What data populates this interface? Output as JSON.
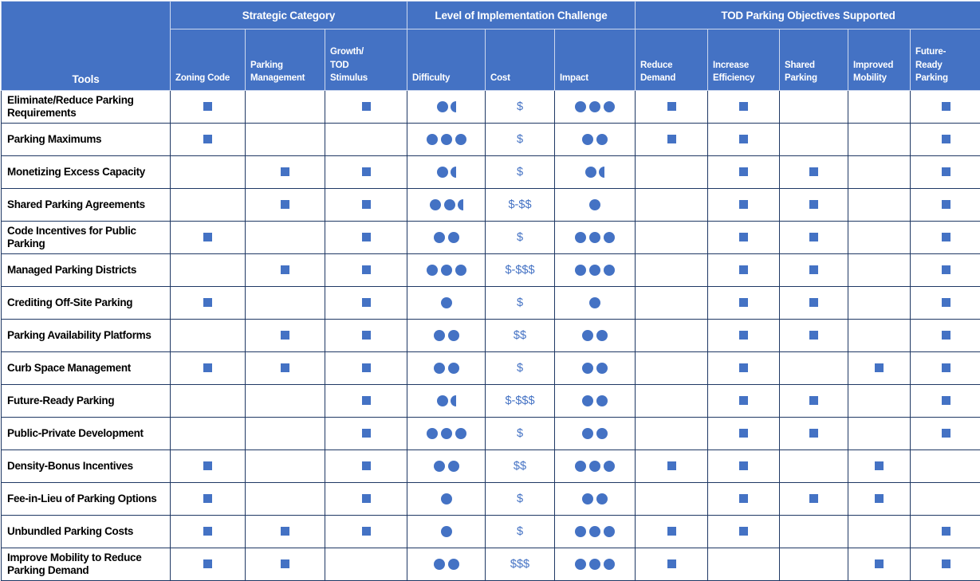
{
  "colors": {
    "header_bg": "#4472C4",
    "header_text": "#FFFFFF",
    "header_grid": "#CDD8EE",
    "body_grid": "#1F3864",
    "symbol_blue": "#4472C4",
    "tool_text": "#000000"
  },
  "icons": {
    "checked": "filled-square-icon",
    "rating_full": "filled-circle-icon",
    "rating_half": "left-half-filled-circle-icon"
  },
  "table": {
    "tools_header": "Tools",
    "groups": [
      {
        "label": "Strategic Category",
        "span": 3
      },
      {
        "label": "Level of Implementation Challenge",
        "span": 3
      },
      {
        "label": "TOD Parking Objectives Supported",
        "span": 5
      }
    ],
    "columns": [
      "Zoning Code",
      "Parking\nManagement",
      "Growth/\nTOD\nStimulus",
      "Difficulty",
      "Cost",
      "Impact",
      "Reduce\nDemand",
      "Increase\nEfficiency",
      "Shared\nParking",
      "Improved\nMobility",
      "Future-\nReady\nParking"
    ],
    "rows": [
      {
        "tool": "Eliminate/Reduce Parking Requirements",
        "cats": [
          1,
          0,
          1
        ],
        "difficulty": 1.5,
        "cost": "$",
        "impact": 3,
        "objectives": [
          1,
          1,
          0,
          0,
          1
        ]
      },
      {
        "tool": "Parking Maximums",
        "cats": [
          1,
          0,
          0
        ],
        "difficulty": 3,
        "cost": "$",
        "impact": 2,
        "objectives": [
          1,
          1,
          0,
          0,
          1
        ]
      },
      {
        "tool": "Monetizing Excess Capacity",
        "cats": [
          0,
          1,
          1
        ],
        "difficulty": 1.5,
        "cost": "$",
        "impact": 1.5,
        "objectives": [
          0,
          1,
          1,
          0,
          1
        ]
      },
      {
        "tool": "Shared Parking Agreements",
        "cats": [
          0,
          1,
          1
        ],
        "difficulty": 2.5,
        "cost": "$-$$",
        "impact": 1,
        "objectives": [
          0,
          1,
          1,
          0,
          1
        ]
      },
      {
        "tool": "Code Incentives for Public Parking",
        "cats": [
          1,
          0,
          1
        ],
        "difficulty": 2,
        "cost": "$",
        "impact": 3,
        "objectives": [
          0,
          1,
          1,
          0,
          1
        ]
      },
      {
        "tool": "Managed Parking Districts",
        "cats": [
          0,
          1,
          1
        ],
        "difficulty": 3,
        "cost": "$-$$$",
        "impact": 3,
        "objectives": [
          0,
          1,
          1,
          0,
          1
        ]
      },
      {
        "tool": "Crediting Off-Site Parking",
        "cats": [
          1,
          0,
          1
        ],
        "difficulty": 1,
        "cost": "$",
        "impact": 1,
        "objectives": [
          0,
          1,
          1,
          0,
          1
        ]
      },
      {
        "tool": "Parking Availability Platforms",
        "cats": [
          0,
          1,
          1
        ],
        "difficulty": 2,
        "cost": "$$",
        "impact": 2,
        "objectives": [
          0,
          1,
          1,
          0,
          1
        ]
      },
      {
        "tool": "Curb Space Management",
        "cats": [
          1,
          1,
          1
        ],
        "difficulty": 2,
        "cost": "$",
        "impact": 2,
        "objectives": [
          0,
          1,
          0,
          1,
          1
        ]
      },
      {
        "tool": "Future-Ready Parking",
        "cats": [
          0,
          0,
          1
        ],
        "difficulty": 1.5,
        "cost": "$-$$$",
        "impact": 2,
        "objectives": [
          0,
          1,
          1,
          0,
          1
        ]
      },
      {
        "tool": "Public-Private Development",
        "cats": [
          0,
          0,
          1
        ],
        "difficulty": 3,
        "cost": "$",
        "impact": 2,
        "objectives": [
          0,
          1,
          1,
          0,
          1
        ]
      },
      {
        "tool": "Density-Bonus Incentives",
        "cats": [
          1,
          0,
          1
        ],
        "difficulty": 2,
        "cost": "$$",
        "impact": 3,
        "objectives": [
          1,
          1,
          0,
          1,
          0
        ]
      },
      {
        "tool": "Fee-in-Lieu of Parking Options",
        "cats": [
          1,
          0,
          1
        ],
        "difficulty": 1,
        "cost": "$",
        "impact": 2,
        "objectives": [
          0,
          1,
          1,
          1,
          0
        ]
      },
      {
        "tool": "Unbundled Parking Costs",
        "cats": [
          1,
          1,
          1
        ],
        "difficulty": 1,
        "cost": "$",
        "impact": 3,
        "objectives": [
          1,
          1,
          0,
          0,
          1
        ]
      },
      {
        "tool": "Improve Mobility to Reduce Parking Demand",
        "cats": [
          1,
          1,
          0
        ],
        "difficulty": 2,
        "cost": "$$$",
        "impact": 3,
        "objectives": [
          1,
          0,
          0,
          1,
          1
        ]
      }
    ]
  }
}
